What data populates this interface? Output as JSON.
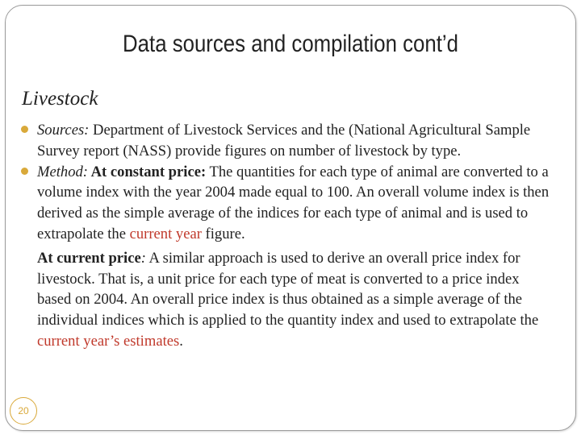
{
  "slide": {
    "title": "Data sources and compilation cont’d",
    "section": "Livestock",
    "page_number": "20"
  },
  "bullets": [
    {
      "label": "Sources:",
      "text": " Department of Livestock Services and the (National Agricultural Sample Survey report (NASS) provide figures on number of livestock by type."
    },
    {
      "label": "Method:",
      "sub_label": " At constant price:",
      "text_before": " The quantities for each type of animal are converted to a volume index with the year 2004 made equal to 100. An overall volume index is then derived as the simple average of the indices for each type of animal and is used to extrapolate the ",
      "highlight": "current year",
      "text_after": " figure."
    }
  ],
  "current_price_paragraph": {
    "label": "At current price",
    "colon": ":",
    "text_before": " A similar approach is used to derive an overall price index for livestock. That is, a unit price for each type of meat is converted to a price index based on 2004. An overall price index is thus obtained as a simple average of the individual indices which is applied to the quantity index and used to extrapolate the ",
    "highlight": "current year’s estimates",
    "text_after": "."
  },
  "colors": {
    "accent": "#d9a93a",
    "highlight_red": "#c0392b",
    "text": "#222222"
  }
}
